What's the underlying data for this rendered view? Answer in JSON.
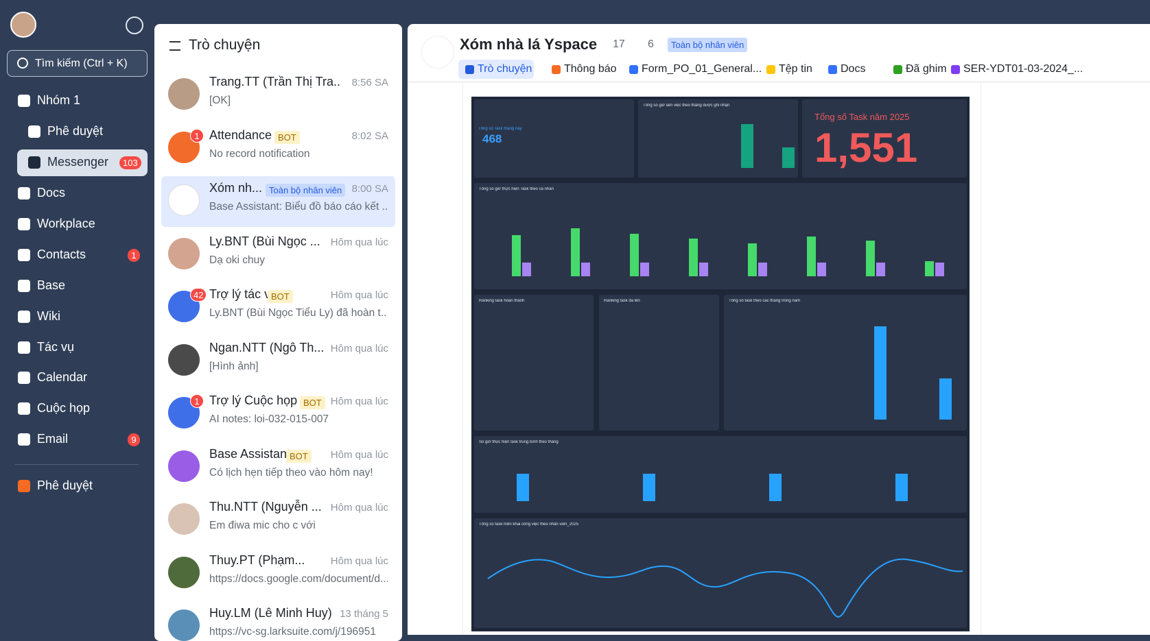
{
  "sidebar": {
    "search": "Tìm kiếm (Ctrl + K)",
    "nav": [
      {
        "label": "Nhóm 1"
      },
      {
        "label": "Phê duyệt"
      },
      {
        "label": "Messenger",
        "badge": 103
      },
      {
        "label": "Docs"
      },
      {
        "label": "Workplace"
      },
      {
        "label": "Contacts",
        "badge": 1
      },
      {
        "label": "Base"
      },
      {
        "label": "Wiki"
      },
      {
        "label": "Tác vụ"
      },
      {
        "label": "Calendar"
      },
      {
        "label": "Cuộc họp"
      },
      {
        "label": "Email",
        "badge": 9
      },
      {
        "label": "Phê duyệt"
      }
    ]
  },
  "chat_list": {
    "title": "Trò chuyện",
    "items": [
      {
        "name": "Trang.TT (Trần Thị Tra...",
        "time": "8:56 SA",
        "preview": "[OK]"
      },
      {
        "name": "Attendance",
        "tag": "BOT",
        "time": "8:02 SA",
        "preview": "No record notification",
        "badge": 1
      },
      {
        "name": "Xóm nh...",
        "tag": "Toàn bộ nhân viên",
        "time": "8:00 SA",
        "preview": "Base Assistant: Biểu đồ báo cáo kết ..."
      },
      {
        "name": "Ly.BNT (Bùi Ngọc ...",
        "time": "Hôm qua lúc",
        "preview": "Dạ oki chuy"
      },
      {
        "name": "Trợ lý tác vụ",
        "tag": "BOT",
        "time": "Hôm qua lúc",
        "preview": "Ly.BNT (Bùi Ngọc Tiểu Ly) đã hoàn t...",
        "badge": 42
      },
      {
        "name": "Ngan.NTT (Ngô Th...",
        "time": "Hôm qua lúc",
        "preview": "[Hình ảnh]"
      },
      {
        "name": "Trợ lý Cuộc họp",
        "tag": "BOT",
        "time": "Hôm qua lúc",
        "preview": "AI notes: loi-032-015-007",
        "badge": 1
      },
      {
        "name": "Base Assistant",
        "tag": "BOT",
        "time": "Hôm qua lúc",
        "preview": "Có lịch hẹn tiếp theo vào hôm nay!"
      },
      {
        "name": "Thu.NTT (Nguyễn ...",
        "time": "Hôm qua lúc",
        "preview": "Em điwa mic cho c với"
      },
      {
        "name": "Thuy.PT (Phạm...",
        "time": "Hôm qua lúc",
        "preview": "https://docs.google.com/document/d..."
      },
      {
        "name": "Huy.LM (Lê Minh Huy)",
        "time": "13 tháng 5",
        "preview": "https://vc-sg.larksuite.com/j/196951"
      }
    ]
  },
  "chat": {
    "title": "Xóm nhà lá Yspace",
    "members": 17,
    "bots": 6,
    "tag": "Toàn bộ nhân viên",
    "tabs": [
      "Trò chuyện",
      "Thông báo",
      "Form_PO_01_General...",
      "Tệp tin",
      "Docs",
      "Đã ghim",
      "SER-YDT01-03-2024_..."
    ]
  },
  "dashboard": {
    "month_label": "Tổng số Task tháng này",
    "month_value": 468,
    "year_label": "Tổng số Task năm 2025",
    "year_value": "1,551",
    "panels": [
      "Tổng số giờ làm việc theo tháng được ghi nhận",
      "Tổng số giờ thực hiện Task theo cá nhân",
      "Ranking task hoàn thành",
      "Ranking task đã lên",
      "Tổng số task theo các tháng trong năm",
      "Số giờ thực hiện task trung bình theo tháng",
      "Tổng số task triển khai công việc theo nhân viên_2025"
    ]
  }
}
